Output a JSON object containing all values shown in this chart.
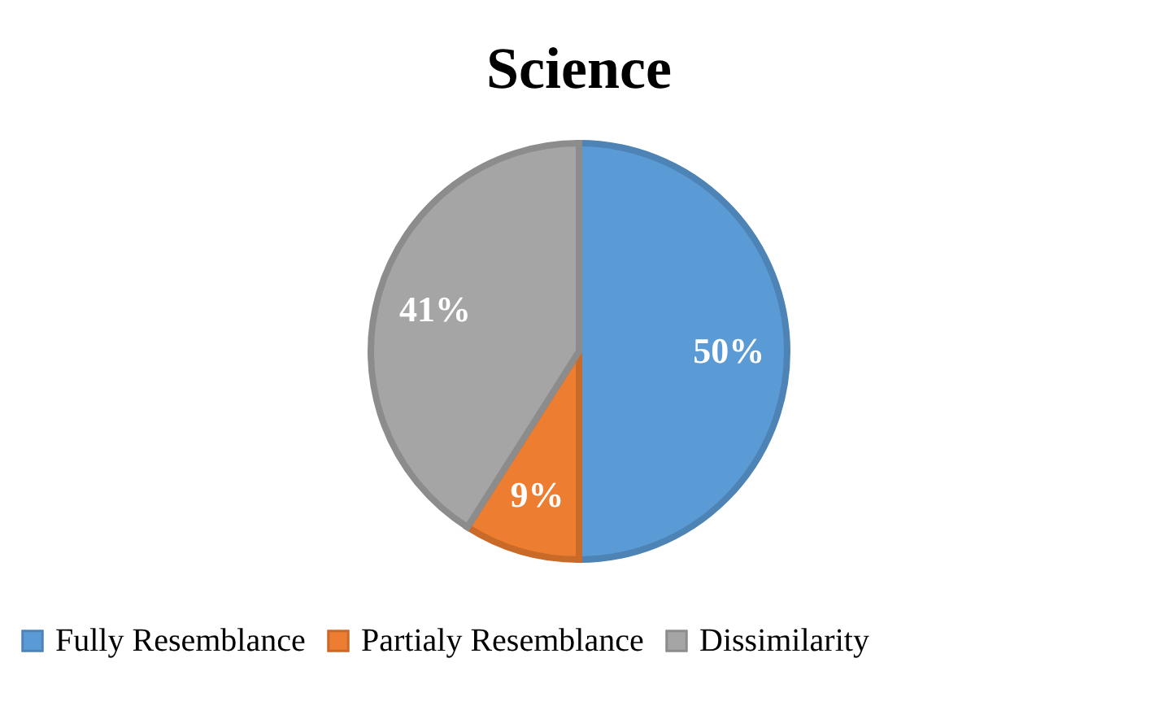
{
  "chart_data": {
    "type": "pie",
    "title": "Science",
    "categories": [
      "Fully Resemblance",
      "Partialy Resemblance",
      "Dissimilarity"
    ],
    "values": [
      50,
      9,
      41
    ],
    "colors": [
      "#5b9bd5",
      "#ed7d31",
      "#a5a5a5"
    ],
    "value_labels": [
      "50%",
      "9%",
      "41%"
    ],
    "legend": "bottom"
  }
}
